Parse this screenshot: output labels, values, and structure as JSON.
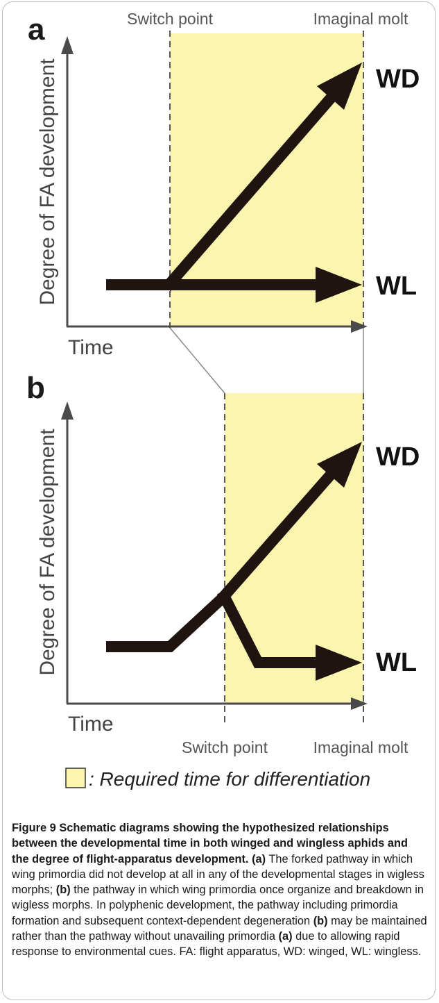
{
  "panel_a": {
    "label": "a",
    "switch_point": "Switch point",
    "imaginal_molt": "Imaginal molt",
    "y_axis": "Degree of FA development",
    "x_axis": "Time",
    "upper_end": "WD",
    "lower_end": "WL"
  },
  "panel_b": {
    "label": "b",
    "switch_point": "Switch point",
    "imaginal_molt": "Imaginal molt",
    "y_axis": "Degree of FA development",
    "x_axis": "Time",
    "upper_end": "WD",
    "lower_end": "WL"
  },
  "legend": {
    "text": ": Required time for differentiation",
    "swatch_color": "#fbf5b0"
  },
  "colors": {
    "highlight": "#fbf5b0",
    "arrow": "#1f1410",
    "axis": "#4a4a4a"
  },
  "caption": {
    "figure_label": "Figure 9",
    "title": " Schematic diagrams showing the hypothesized relationships between the developmental time in both winged and wingless aphids and the degree of flight-apparatus development.",
    "ref_a1": "(a)",
    "text1": " The forked pathway in which wing primordia did not develop at all in any of the developmental stages in wigless morphs; ",
    "ref_b1": "(b)",
    "text2": " the pathway in which wing primordia once organize and breakdown in wigless morphs. In polyphenic development, the pathway including primordia formation and subsequent context-dependent degeneration ",
    "ref_b2": "(b)",
    "text3": " may be maintained rather than the pathway without unavailing primordia ",
    "ref_a2": "(a)",
    "text4": " due to allowing rapid response to environmental cues. FA: flight apparatus, WD: winged, WL: wingless."
  }
}
